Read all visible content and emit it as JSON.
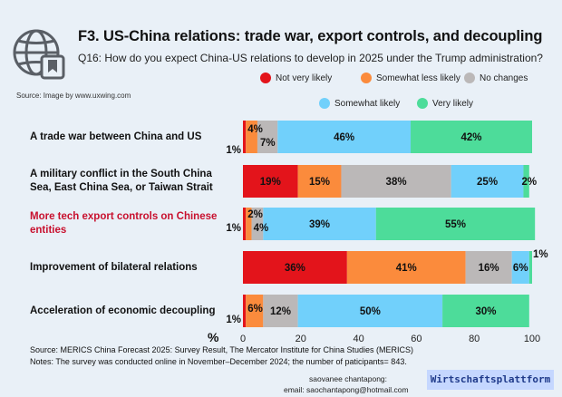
{
  "header": {
    "title": "F3. US-China relations: trade war, export controls, and decoupling",
    "subtitle": "Q16: How do you expect China-US relations to develop in 2025 under the Trump administration?",
    "image_source": "Source: Image by www.uxwing.com"
  },
  "icons": {
    "header_icon": "globe-with-bookmark-icon"
  },
  "chart_data": {
    "type": "bar",
    "orientation": "horizontal",
    "stacked": true,
    "categories": [
      "A trade war between China and US",
      "A military conflict in the South China Sea, East China Sea, or Taiwan Strait",
      "More tech export controls on Chinese entities",
      "Improvement of bilateral relations",
      "Acceleration of economic decoupling"
    ],
    "highlighted_category": "More tech export controls on Chinese entities",
    "highlight_color": "#c8102e",
    "series": [
      {
        "name": "Not very likely",
        "color": "#e3141b",
        "values": [
          1,
          19,
          1,
          36,
          1
        ]
      },
      {
        "name": "Somewhat less likely",
        "color": "#fb8b3c",
        "values": [
          4,
          15,
          2,
          41,
          6
        ]
      },
      {
        "name": "No changes",
        "color": "#bbb8b8",
        "values": [
          7,
          38,
          4,
          16,
          12
        ]
      },
      {
        "name": "Somewhat likely",
        "color": "#71d0fb",
        "values": [
          46,
          25,
          39,
          6,
          50
        ]
      },
      {
        "name": "Very likely",
        "color": "#4ddc9a",
        "values": [
          42,
          2,
          55,
          1,
          30
        ]
      }
    ],
    "value_labels": [
      [
        "1%",
        "4%",
        "7%",
        "46%",
        "42%"
      ],
      [
        "19%",
        "15%",
        "38%",
        "25%",
        "2%"
      ],
      [
        "1%",
        "2%",
        "4%",
        "39%",
        "55%"
      ],
      [
        "36%",
        "41%",
        "16%",
        "6%",
        "1%"
      ],
      [
        "1%",
        "6%",
        "12%",
        "50%",
        "30%"
      ]
    ],
    "xlim": [
      0,
      100
    ],
    "xticks": [
      "0",
      "20",
      "40",
      "60",
      "80",
      "100"
    ],
    "xlabel": "%",
    "grid": false,
    "legend_position": "top-right"
  },
  "footer": {
    "source": "Source: MERICS China Forecast 2025: Survey Result, The Mercator Institute for China Studies (MERICS)",
    "notes": "Notes: The survey was conducted online in November–December 2024; the number of paticipants= 843.",
    "author_name": "saovanee chantapong:",
    "author_email": "email: saochantapong@hotmail.com",
    "brand": "Wirtschaftsplattform"
  }
}
